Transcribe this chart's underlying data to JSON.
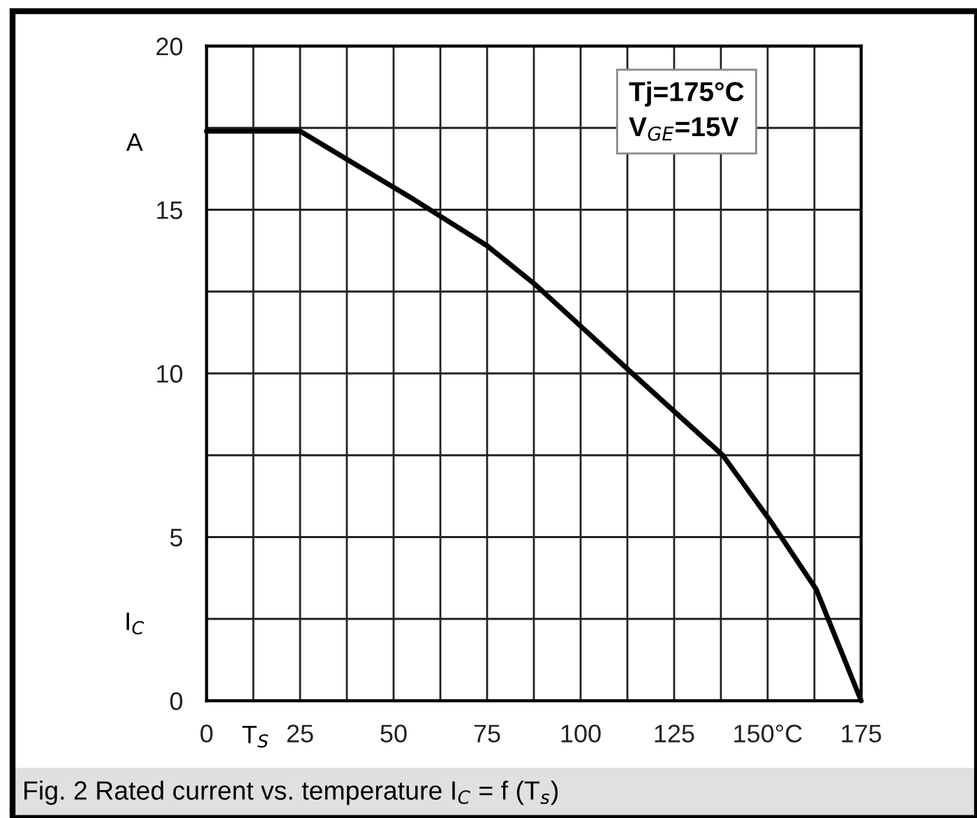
{
  "chart_data": {
    "type": "line",
    "title": "Fig. 2 Rated current vs. temperature I$_{C}$ = f (T$_{s}$)",
    "xlabel": "T$_{S}$",
    "ylabel": "I$_{C}$",
    "annotations": [
      "A",
      "Tj=175°C\nV$_{GE}$=15V"
    ],
    "x": [
      0,
      25,
      55.6,
      75,
      88,
      113.8,
      138,
      151.3,
      163,
      175
    ],
    "series": [
      {
        "color": "#000000",
        "values": [
          17.4,
          17.4,
          15.3,
          13.9,
          12.7,
          10.0,
          7.5,
          5.4,
          3.4,
          0
        ]
      }
    ],
    "xlim": [
      0,
      175
    ],
    "ylim": [
      0,
      20
    ],
    "xticks": [
      0,
      {
        "value": 12.5,
        "label": null
      },
      25,
      {
        "value": 37.5,
        "label": null
      },
      50,
      {
        "value": 62.5,
        "label": null
      },
      75,
      {
        "value": 87.5,
        "label": null
      },
      100,
      {
        "value": 112.5,
        "label": null
      },
      125,
      {
        "value": 137.5,
        "label": null
      },
      {
        "value": 150,
        "label": "150°C"
      },
      {
        "value": 162.5,
        "label": null
      },
      175
    ],
    "yticks": [
      0,
      {
        "value": 2.5,
        "label": null
      },
      5,
      {
        "value": 7.5,
        "label": null
      },
      10,
      {
        "value": 12.5,
        "label": null
      },
      15,
      {
        "value": 17.5,
        "label": null
      },
      20
    ],
    "grid": true,
    "marker": "none",
    "line_style": "solid",
    "legend": false
  }
}
